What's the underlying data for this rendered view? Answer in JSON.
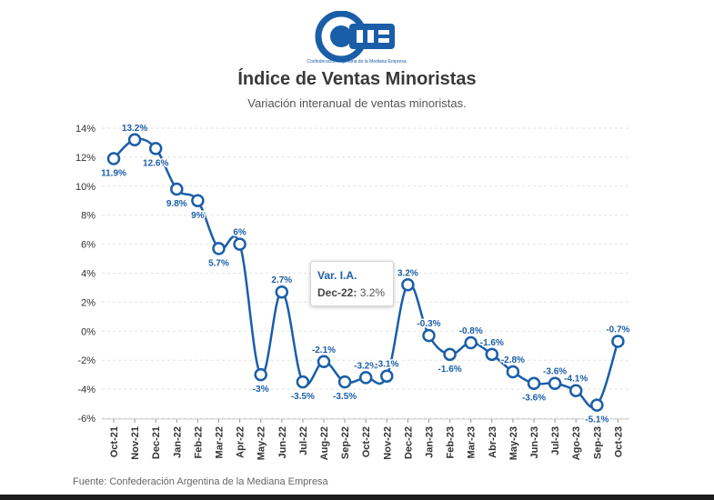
{
  "logo": {
    "text": "came",
    "tagline": "Confederación Argentina de la Mediana Empresa"
  },
  "header": {
    "title": "Índice de Ventas Minoristas",
    "subtitle": "Variación interanual de ventas minoristas."
  },
  "tooltip": {
    "series": "Var. I.A.",
    "category": "Dec-22",
    "value": "3.2%"
  },
  "footer": {
    "source": "Fuente: Confederación Argentina de la Mediana Empresa"
  },
  "colors": {
    "line": "#1a5ea8",
    "label": "#1a5ea8",
    "grid": "#e2e2e2",
    "text": "#333333"
  },
  "chart_data": {
    "type": "line",
    "title": "Índice de Ventas Minoristas",
    "subtitle": "Variación interanual de ventas minoristas.",
    "categories": [
      "Oct-21",
      "Nov-21",
      "Dec-21",
      "Jan-22",
      "Feb-22",
      "Mar-22",
      "Apr-22",
      "May-22",
      "Jun-22",
      "Jul-22",
      "Aug-22",
      "Sep-22",
      "Oct-22",
      "Nov-22",
      "Dec-22",
      "Jan-23",
      "Feb-23",
      "Mar-23",
      "Abr-23",
      "May-23",
      "Jun-23",
      "Jul-23",
      "Ago-23",
      "Sep-23",
      "Oct-23"
    ],
    "series": [
      {
        "values": [
          11.9,
          13.2,
          12.6,
          9.8,
          9,
          5.7,
          6,
          -3,
          2.7,
          -3.5,
          -2.1,
          -3.5,
          -3.2,
          -3.1,
          3.2,
          -0.3,
          -1.6,
          -0.8,
          -1.6,
          -2.8,
          -3.6,
          -3.6,
          -4.1,
          -5.1,
          -0.7
        ],
        "labels": [
          "11.9%",
          "13.2%",
          "12.6%",
          "9.8%",
          "9%",
          "5.7%",
          "6%",
          "-3%",
          "2.7%",
          "-3.5%",
          "-2.1%",
          "-3.5%",
          "-3.2%",
          "-3.1%",
          "3.2%",
          "-0.3%",
          "-1.6%",
          "-0.8%",
          "-1.6%",
          "-2.8%",
          "-3.6%",
          "-3.6%",
          "-4.1%",
          "-5.1%",
          "-0.7%"
        ]
      }
    ],
    "yticks": [
      "14%",
      "12%",
      "10%",
      "8%",
      "6%",
      "4%",
      "2%",
      "0%",
      "-2%",
      "-4%",
      "-6%"
    ],
    "ylim": [
      -6,
      14
    ],
    "xlabel": "",
    "ylabel": "",
    "grid": true,
    "legend": "none"
  }
}
